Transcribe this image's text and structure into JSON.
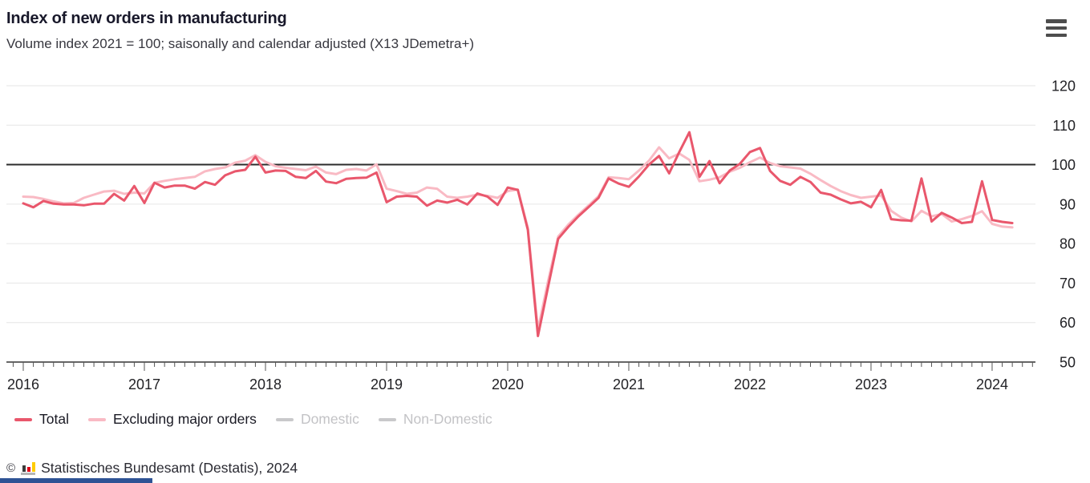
{
  "header": {
    "title": "Index of new orders in manufacturing",
    "subtitle": "Volume index 2021 = 100; saisonally and calendar adjusted (X13 JDemetra+)"
  },
  "menu": {
    "tooltip": "Chart menu"
  },
  "chart_data": {
    "type": "line",
    "title": "Index of new orders in manufacturing",
    "subtitle": "Volume index 2021 = 100; saisonally and calendar adjusted (X13 JDemetra+)",
    "xlabel": "",
    "ylabel": "",
    "ylim": [
      50,
      120
    ],
    "yticks": [
      120,
      110,
      100,
      90,
      80,
      70,
      60,
      50
    ],
    "xticks": [
      2016,
      2017,
      2018,
      2019,
      2020,
      2021,
      2022,
      2023,
      2024
    ],
    "baseline": 100,
    "grid": true,
    "legend_position": "bottom",
    "x": [
      "2016-01",
      "2016-02",
      "2016-03",
      "2016-04",
      "2016-05",
      "2016-06",
      "2016-07",
      "2016-08",
      "2016-09",
      "2016-10",
      "2016-11",
      "2016-12",
      "2017-01",
      "2017-02",
      "2017-03",
      "2017-04",
      "2017-05",
      "2017-06",
      "2017-07",
      "2017-08",
      "2017-09",
      "2017-10",
      "2017-11",
      "2017-12",
      "2018-01",
      "2018-02",
      "2018-03",
      "2018-04",
      "2018-05",
      "2018-06",
      "2018-07",
      "2018-08",
      "2018-09",
      "2018-10",
      "2018-11",
      "2018-12",
      "2019-01",
      "2019-02",
      "2019-03",
      "2019-04",
      "2019-05",
      "2019-06",
      "2019-07",
      "2019-08",
      "2019-09",
      "2019-10",
      "2019-11",
      "2019-12",
      "2020-01",
      "2020-02",
      "2020-03",
      "2020-04",
      "2020-05",
      "2020-06",
      "2020-07",
      "2020-08",
      "2020-09",
      "2020-10",
      "2020-11",
      "2020-12",
      "2021-01",
      "2021-02",
      "2021-03",
      "2021-04",
      "2021-05",
      "2021-06",
      "2021-07",
      "2021-08",
      "2021-09",
      "2021-10",
      "2021-11",
      "2021-12",
      "2022-01",
      "2022-02",
      "2022-03",
      "2022-04",
      "2022-05",
      "2022-06",
      "2022-07",
      "2022-08",
      "2022-09",
      "2022-10",
      "2022-11",
      "2022-12",
      "2023-01",
      "2023-02",
      "2023-03",
      "2023-04",
      "2023-05",
      "2023-06",
      "2023-07",
      "2023-08",
      "2023-09",
      "2023-10",
      "2023-11",
      "2023-12",
      "2024-01",
      "2024-02",
      "2024-03"
    ],
    "series": [
      {
        "name": "Total",
        "color": "#e9576c",
        "enabled": true,
        "values": [
          90.2,
          89.2,
          90.8,
          90.1,
          89.9,
          89.9,
          89.7,
          90.1,
          90.1,
          92.6,
          90.9,
          94.6,
          90.3,
          95.4,
          94.2,
          94.7,
          94.7,
          93.9,
          95.6,
          94.9,
          97.3,
          98.3,
          98.7,
          102.0,
          98.0,
          98.5,
          98.4,
          96.9,
          96.6,
          98.4,
          95.7,
          95.3,
          96.4,
          96.6,
          96.7,
          98.0,
          90.5,
          91.9,
          92.1,
          91.9,
          89.6,
          90.9,
          90.4,
          91.1,
          89.9,
          92.7,
          91.9,
          89.8,
          94.2,
          93.6,
          83.5,
          56.6,
          69.0,
          81.2,
          84.2,
          86.9,
          89.2,
          91.6,
          96.5,
          95.2,
          94.4,
          97.0,
          100.0,
          102.2,
          97.8,
          103.2,
          108.2,
          96.9,
          100.9,
          95.3,
          98.5,
          100.2,
          103.2,
          104.2,
          98.4,
          95.9,
          94.9,
          96.9,
          95.6,
          92.9,
          92.4,
          91.2,
          90.2,
          90.6,
          89.2,
          93.6,
          86.2,
          85.9,
          85.8,
          96.5,
          85.6,
          87.8,
          86.6,
          85.2,
          85.5,
          95.8,
          86.0,
          85.5,
          85.2
        ]
      },
      {
        "name": "Excluding major orders",
        "color": "#f9bac4",
        "enabled": true,
        "values": [
          91.9,
          91.8,
          91.3,
          90.7,
          90.2,
          90.3,
          91.6,
          92.4,
          93.2,
          93.4,
          92.6,
          92.9,
          92.7,
          95.4,
          95.9,
          96.3,
          96.6,
          96.9,
          98.3,
          98.9,
          99.3,
          100.5,
          101.0,
          102.4,
          100.7,
          99.6,
          99.2,
          98.9,
          98.6,
          99.5,
          98.0,
          97.6,
          98.7,
          98.9,
          98.5,
          100.1,
          93.9,
          93.3,
          92.6,
          92.9,
          94.2,
          93.9,
          91.9,
          91.6,
          91.9,
          92.4,
          92.1,
          91.6,
          93.3,
          93.7,
          84.0,
          58.2,
          70.5,
          81.8,
          84.8,
          87.3,
          89.6,
          92.0,
          96.8,
          96.6,
          96.3,
          98.5,
          101.0,
          104.4,
          101.6,
          102.8,
          101.2,
          95.8,
          96.2,
          96.8,
          98.2,
          99.2,
          100.6,
          101.8,
          100.4,
          99.6,
          99.3,
          99.0,
          97.7,
          96.1,
          94.6,
          93.3,
          92.3,
          91.6,
          91.9,
          92.2,
          88.3,
          86.6,
          85.6,
          88.3,
          86.9,
          87.5,
          85.6,
          86.2,
          87.0,
          88.2,
          85.0,
          84.3,
          84.1
        ]
      },
      {
        "name": "Domestic",
        "color": "#c9c9cb",
        "enabled": false,
        "values": []
      },
      {
        "name": "Non-Domestic",
        "color": "#c9c9cb",
        "enabled": false,
        "values": []
      }
    ]
  },
  "footer": {
    "copyright": "©",
    "source": "Statistisches Bundesamt (Destatis), 2024"
  },
  "colors": {
    "grid": "#e6e6e6",
    "baseline": "#2b2b2b",
    "axis": "#333333",
    "tick": "#555555",
    "accent_blue": "#2e5395",
    "logo_black": "#3c3c3b",
    "logo_red": "#e10019",
    "logo_gold": "#ffcc00"
  }
}
